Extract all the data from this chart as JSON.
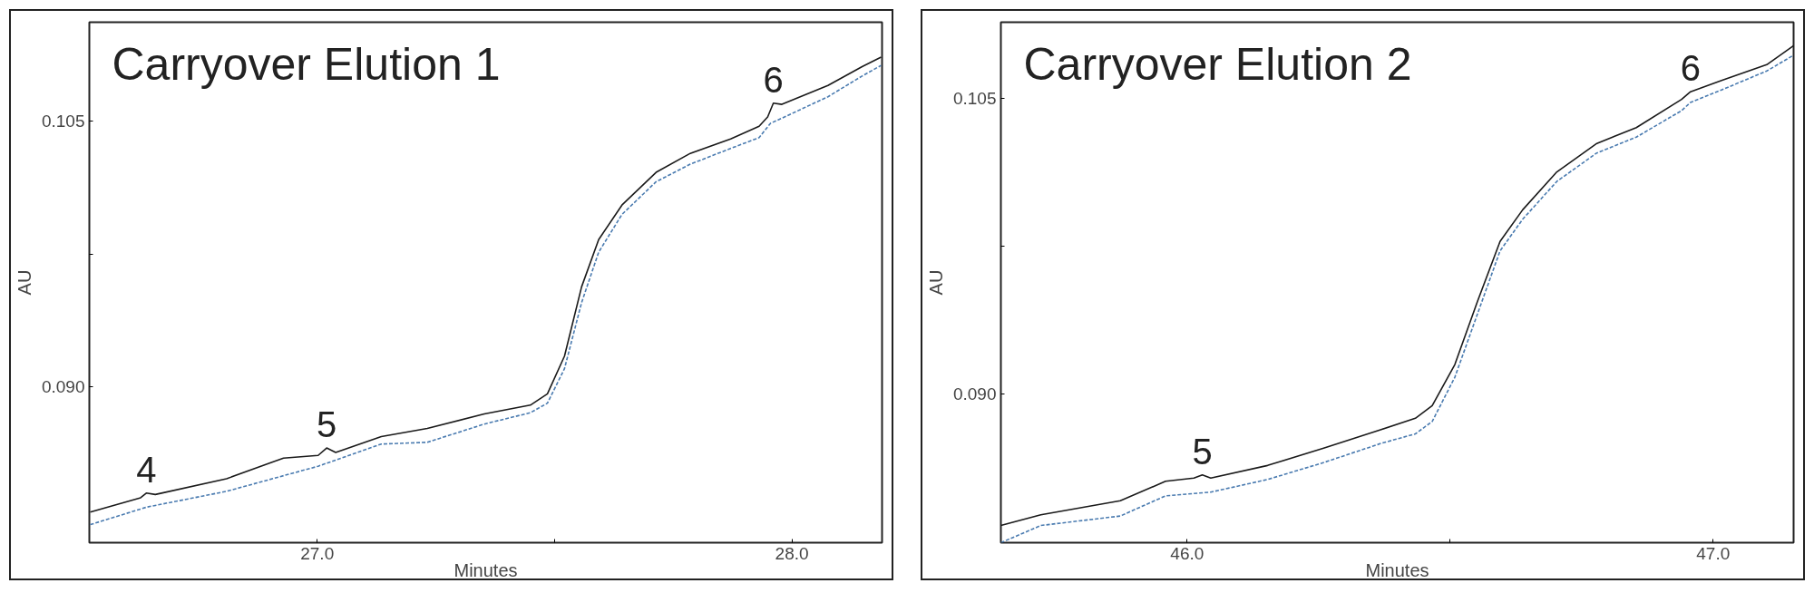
{
  "chart_data": [
    {
      "type": "line",
      "title": "Carryover Elution 1",
      "xlabel": "Minutes",
      "ylabel": "AU",
      "xlim": [
        26.52,
        28.19
      ],
      "ylim": [
        0.0812,
        0.1106
      ],
      "xticks": [
        {
          "value": 27,
          "label": "27.0"
        },
        {
          "value": 27.5,
          "label": null
        },
        {
          "value": 28,
          "label": "28.0"
        }
      ],
      "yticks": [
        {
          "value": 0.09,
          "label": "0.090"
        },
        {
          "value": 0.0975,
          "label": null
        },
        {
          "value": 0.105,
          "label": "0.105"
        }
      ],
      "grid": false,
      "series": [
        {
          "color": "#1a1a1a",
          "line_style": "solid",
          "x": [
            26.522,
            26.628,
            26.64,
            26.659,
            26.809,
            26.929,
            27.002,
            27.02,
            27.039,
            27.135,
            27.232,
            27.352,
            27.449,
            27.485,
            27.521,
            27.557,
            27.593,
            27.642,
            27.714,
            27.786,
            27.871,
            27.931,
            27.949,
            27.961,
            27.979,
            28.076,
            28.148,
            28.188
          ],
          "values": [
            0.08293,
            0.08374,
            0.084,
            0.08392,
            0.08481,
            0.08598,
            0.08613,
            0.08655,
            0.0863,
            0.08719,
            0.08765,
            0.08847,
            0.08897,
            0.08961,
            0.09174,
            0.09565,
            0.09832,
            0.10027,
            0.10212,
            0.10319,
            0.10401,
            0.10472,
            0.10525,
            0.10603,
            0.10596,
            0.10703,
            0.10809,
            0.10863
          ]
        },
        {
          "color": "#4a7bb0",
          "line_style": "dashed",
          "x": [
            26.522,
            26.641,
            26.809,
            27.002,
            27.135,
            27.232,
            27.352,
            27.449,
            27.485,
            27.521,
            27.557,
            27.593,
            27.642,
            27.714,
            27.786,
            27.871,
            27.931,
            27.955,
            27.979,
            28.076,
            28.148,
            28.188
          ],
          "values": [
            0.08222,
            0.08321,
            0.0841,
            0.08552,
            0.08677,
            0.08687,
            0.0879,
            0.08854,
            0.08908,
            0.09103,
            0.09476,
            0.09761,
            0.09974,
            0.10159,
            0.10258,
            0.10347,
            0.10408,
            0.10489,
            0.10518,
            0.10639,
            0.10756,
            0.10816
          ]
        }
      ],
      "annotations": [
        {
          "text": "4",
          "x": 26.64,
          "y": 0.084
        },
        {
          "text": "5",
          "x": 27.02,
          "y": 0.08655
        },
        {
          "text": "6",
          "x": 27.961,
          "y": 0.10603
        }
      ]
    },
    {
      "type": "line",
      "title": "Carryover Elution 2",
      "xlabel": "Minutes",
      "ylabel": "AU",
      "xlim": [
        45.646,
        47.153
      ],
      "ylim": [
        0.08248,
        0.10884
      ],
      "xticks": [
        {
          "value": 46,
          "label": "46.0"
        },
        {
          "value": 46.5,
          "label": null
        },
        {
          "value": 47,
          "label": "47.0"
        }
      ],
      "yticks": [
        {
          "value": 0.09,
          "label": "0.090"
        },
        {
          "value": 0.0975,
          "label": null
        },
        {
          "value": 0.105,
          "label": "0.105"
        }
      ],
      "grid": false,
      "series": [
        {
          "color": "#1a1a1a",
          "line_style": "solid",
          "x": [
            45.646,
            45.722,
            45.873,
            45.959,
            46.013,
            46.029,
            46.045,
            46.153,
            46.261,
            46.369,
            46.434,
            46.466,
            46.509,
            46.552,
            46.595,
            46.638,
            46.703,
            46.779,
            46.854,
            46.94,
            46.957,
            47.016,
            47.102,
            47.153
          ],
          "values": [
            0.08335,
            0.08389,
            0.0846,
            0.08559,
            0.08575,
            0.08591,
            0.08575,
            0.08639,
            0.08728,
            0.08821,
            0.08878,
            0.08942,
            0.0915,
            0.0947,
            0.09774,
            0.09934,
            0.10126,
            0.1027,
            0.1035,
            0.10493,
            0.10532,
            0.10589,
            0.10669,
            0.10765
          ]
        },
        {
          "color": "#4a7bb0",
          "line_style": "dashed",
          "x": [
            45.646,
            45.722,
            45.873,
            45.959,
            46.045,
            46.153,
            46.261,
            46.369,
            46.434,
            46.466,
            46.509,
            46.552,
            46.595,
            46.638,
            46.703,
            46.779,
            46.854,
            46.94,
            46.957,
            47.016,
            47.102,
            47.153
          ],
          "values": [
            0.08248,
            0.08335,
            0.08383,
            0.08485,
            0.08504,
            0.08568,
            0.08655,
            0.08751,
            0.08799,
            0.08862,
            0.09086,
            0.09406,
            0.09726,
            0.09886,
            0.10078,
            0.10222,
            0.10302,
            0.10436,
            0.10478,
            0.10541,
            0.10637,
            0.10717
          ]
        }
      ],
      "annotations": [
        {
          "text": "5",
          "x": 46.029,
          "y": 0.08591
        },
        {
          "text": "6",
          "x": 46.957,
          "y": 0.10532
        }
      ]
    }
  ]
}
